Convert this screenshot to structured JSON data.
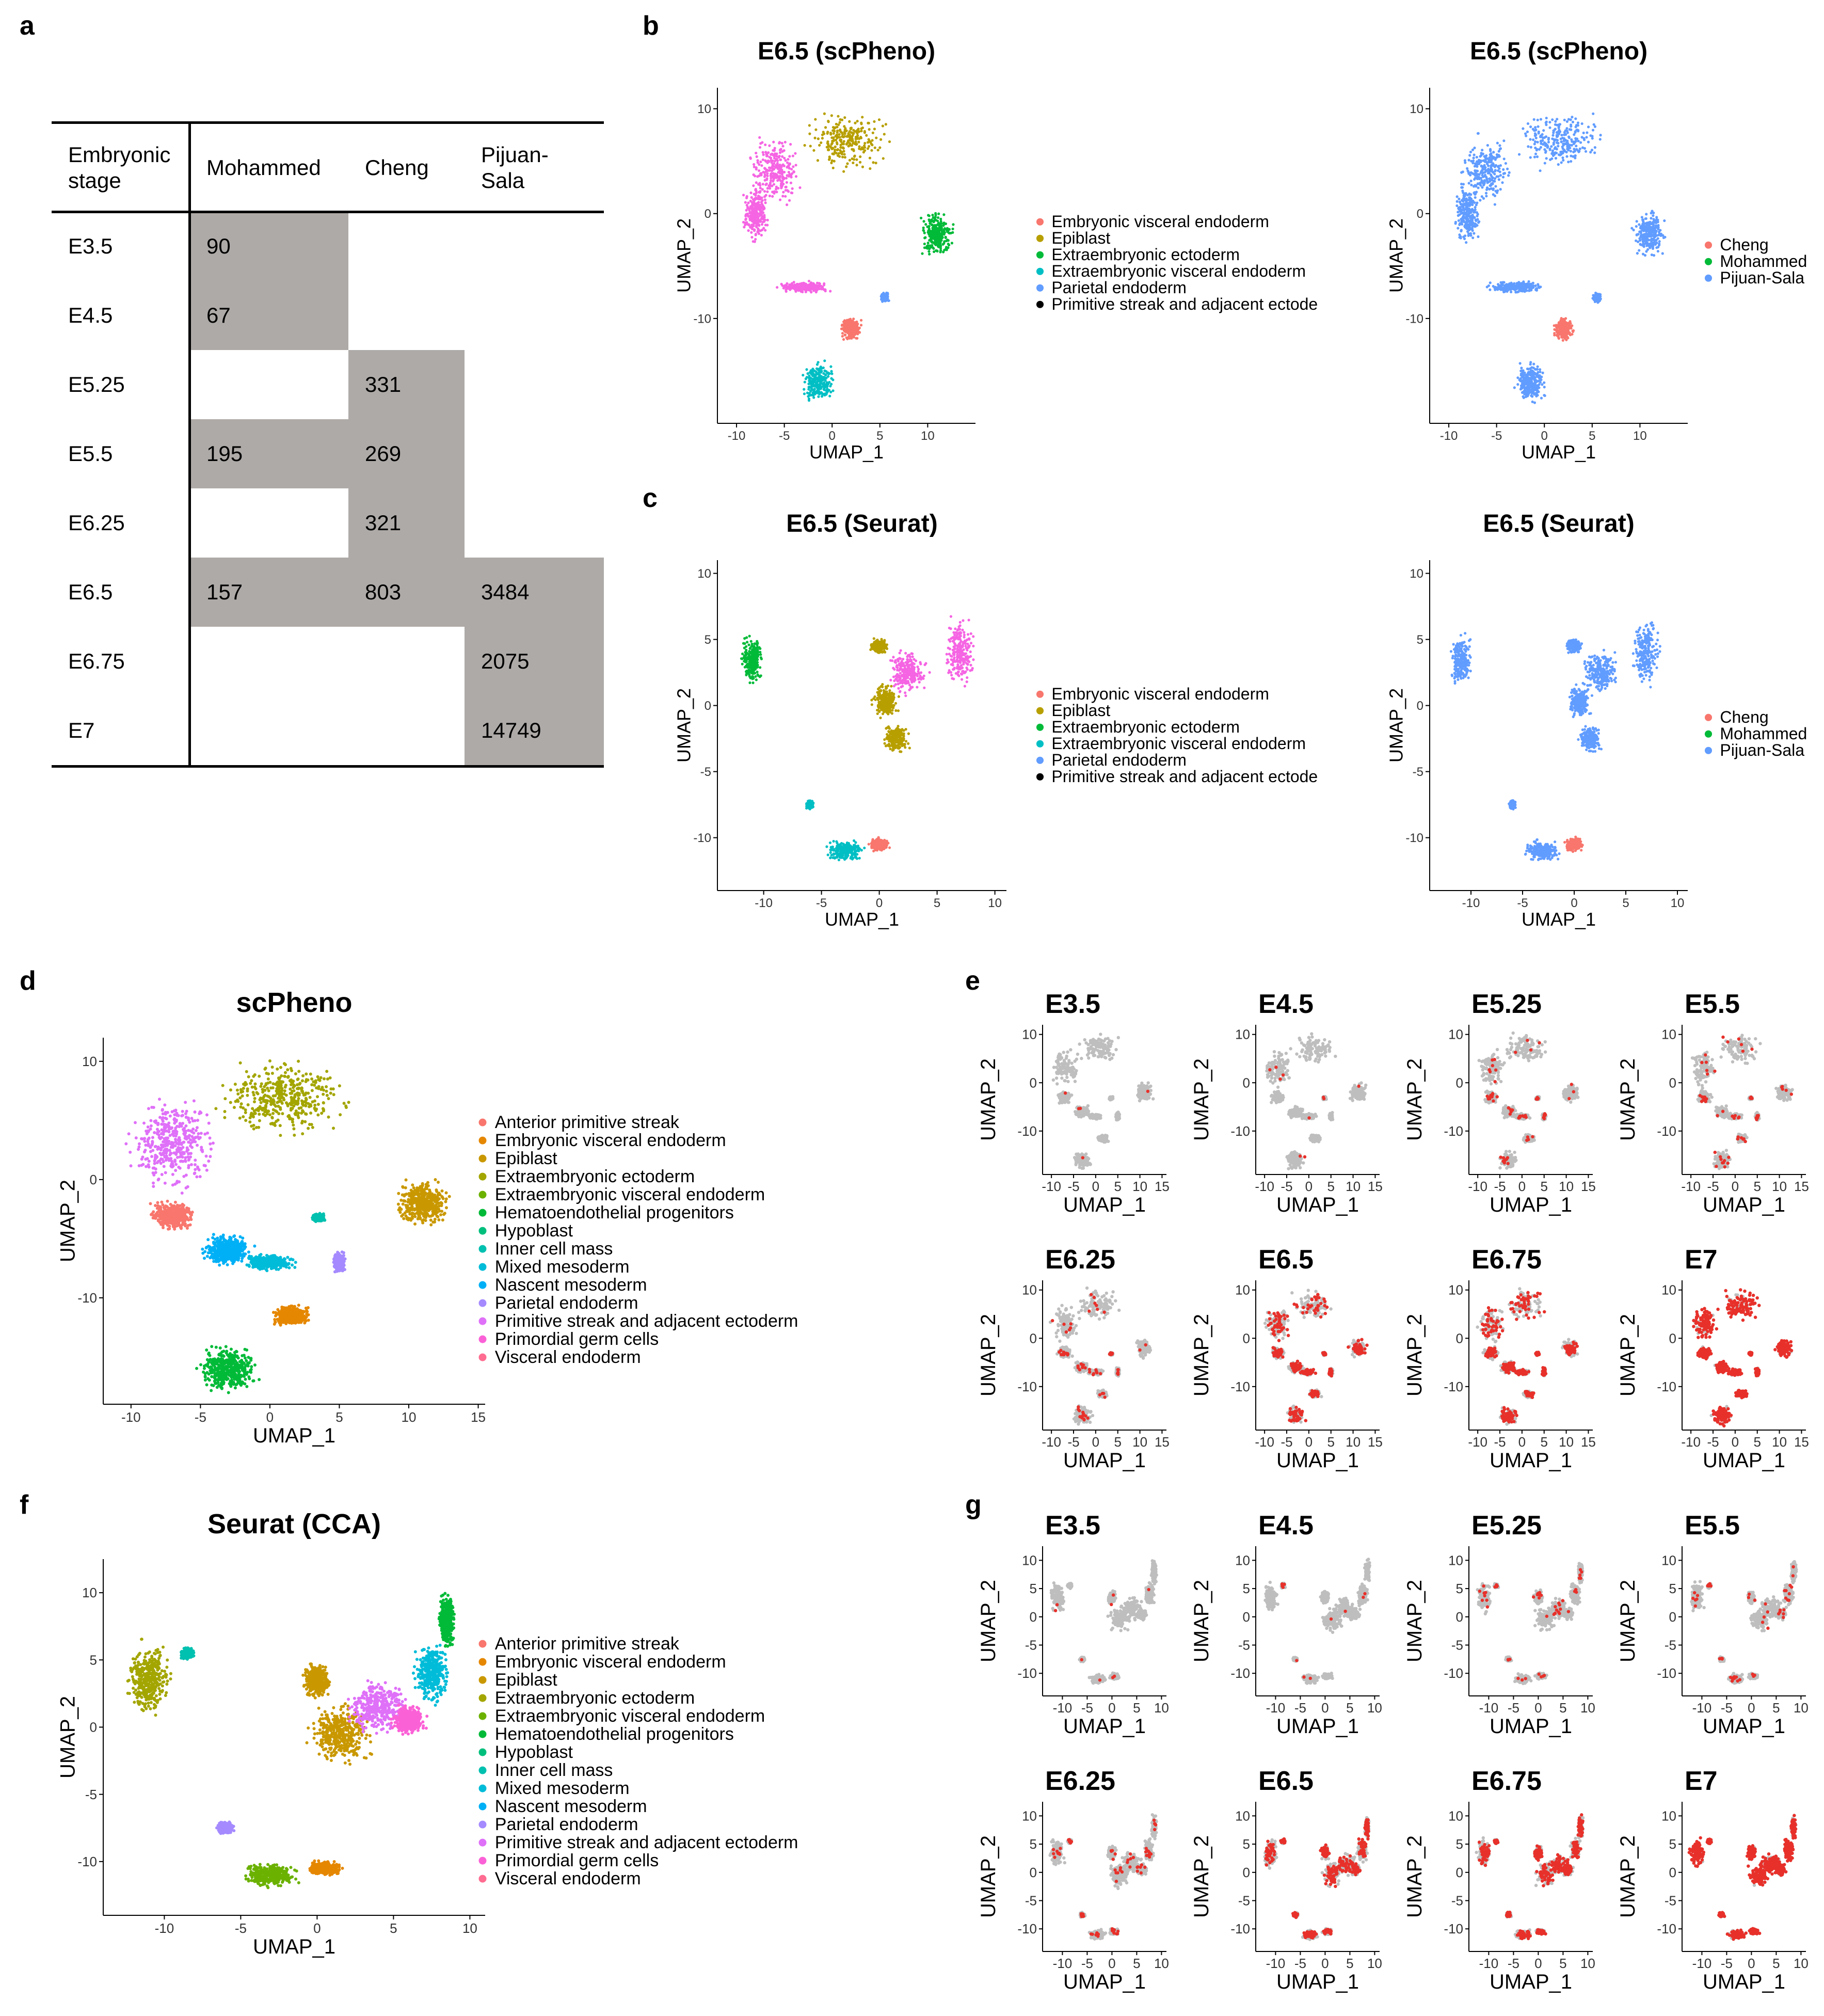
{
  "panel_labels": {
    "a": "a",
    "b": "b",
    "c": "c",
    "d": "d",
    "e": "e",
    "f": "f",
    "g": "g"
  },
  "table": {
    "headers": [
      "Embryonic stage",
      "Mohammed",
      "Cheng",
      "Pijuan-Sala"
    ],
    "header_lines": [
      [
        "Embryonic",
        "stage"
      ],
      [
        "Mohammed"
      ],
      [
        "Cheng"
      ],
      [
        "Pijuan-",
        "Sala"
      ]
    ],
    "rows": [
      {
        "stage": "E3.5",
        "mohammed": "90",
        "cheng": "",
        "pijuan": ""
      },
      {
        "stage": "E4.5",
        "mohammed": "67",
        "cheng": "",
        "pijuan": ""
      },
      {
        "stage": "E5.25",
        "mohammed": "",
        "cheng": "331",
        "pijuan": ""
      },
      {
        "stage": "E5.5",
        "mohammed": "195",
        "cheng": "269",
        "pijuan": ""
      },
      {
        "stage": "E6.25",
        "mohammed": "",
        "cheng": "321",
        "pijuan": ""
      },
      {
        "stage": "E6.5",
        "mohammed": "157",
        "cheng": "803",
        "pijuan": "3484"
      },
      {
        "stage": "E6.75",
        "mohammed": "",
        "cheng": "",
        "pijuan": "2075"
      },
      {
        "stage": "E7",
        "mohammed": "",
        "cheng": "",
        "pijuan": "14749"
      }
    ],
    "fill_color": "#aeaaa8"
  },
  "colors": {
    "Cheng": "#f8766d",
    "Mohammed": "#00ba38",
    "Pijuan-Sala": "#619cff",
    "Embryonic visceral endoderm": "#f8766d",
    "Epiblast": "#b79f00",
    "Extraembryonic ectoderm": "#00ba38",
    "Extraembryonic visceral endoderm": "#00bfc4",
    "Parietal endoderm": "#619cff",
    "Primitive streak and adjacent ectoderm": "#f564e3",
    "highlight": "#e8302a",
    "background_cells": "#bebebe"
  },
  "legends": {
    "b_types": [
      "Embryonic visceral endoderm",
      "Epiblast",
      "Extraembryonic ectoderm",
      "Extraembryonic visceral endoderm",
      "Parietal endoderm",
      "Primitive streak and adjacent ectode"
    ],
    "datasets": [
      "Cheng",
      "Mohammed",
      "Pijuan-Sala"
    ],
    "full_types": [
      "Anterior primitive streak",
      "Embryonic visceral endoderm",
      "Epiblast",
      "Extraembryonic ectoderm",
      "Extraembryonic visceral endoderm",
      "Hematoendothelial progenitors",
      "Hypoblast",
      "Inner cell mass",
      "Mixed mesoderm",
      "Nascent mesoderm",
      "Parietal endoderm",
      "Primitive streak and adjacent ectoderm",
      "Primordial germ cells",
      "Visceral endoderm"
    ],
    "full_type_colors": [
      "#f8766d",
      "#e58700",
      "#c99800",
      "#a3a500",
      "#6bb100",
      "#00ba38",
      "#00bf7d",
      "#00c0af",
      "#00bcd8",
      "#00b0f6",
      "#a58aff",
      "#df70f8",
      "#fb61d7",
      "#ff6c91"
    ],
    "dataset_mohammed_label": "Mohammed"
  },
  "chart_data": [
    {
      "id": "b1",
      "type": "scatter",
      "title": "E6.5 (scPheno)",
      "xlabel": "UMAP_1",
      "ylabel": "UMAP_2",
      "xticks": [
        "-10",
        "-5",
        "0",
        "5",
        "10"
      ],
      "yticks": [
        "10",
        "0",
        "-10"
      ],
      "xlim": [
        -12,
        15
      ],
      "ylim": [
        -20,
        12
      ],
      "color_by": "cell type"
    },
    {
      "id": "b2",
      "type": "scatter",
      "title": "E6.5 (scPheno)",
      "xlabel": "UMAP_1",
      "ylabel": "UMAP_2",
      "xticks": [
        "-10",
        "-5",
        "0",
        "5",
        "10"
      ],
      "yticks": [
        "10",
        "0",
        "-10"
      ],
      "xlim": [
        -12,
        15
      ],
      "ylim": [
        -20,
        12
      ],
      "color_by": "dataset"
    },
    {
      "id": "c1",
      "type": "scatter",
      "title": "E6.5 (Seurat)",
      "xlabel": "UMAP_1",
      "ylabel": "UMAP_2",
      "xticks": [
        "-10",
        "-5",
        "0",
        "5",
        "10"
      ],
      "yticks": [
        "10",
        "5",
        "0",
        "-5",
        "-10"
      ],
      "xlim": [
        -14,
        11
      ],
      "ylim": [
        -14,
        11
      ],
      "color_by": "cell type"
    },
    {
      "id": "c2",
      "type": "scatter",
      "title": "E6.5 (Seurat)",
      "xlabel": "UMAP_1",
      "ylabel": "UMAP_2",
      "xticks": [
        "-10",
        "-5",
        "0",
        "5",
        "10"
      ],
      "yticks": [
        "10",
        "5",
        "0",
        "-5",
        "-10"
      ],
      "xlim": [
        -14,
        11
      ],
      "ylim": [
        -14,
        11
      ],
      "color_by": "dataset"
    },
    {
      "id": "d",
      "type": "scatter",
      "title": "scPheno",
      "xlabel": "UMAP_1",
      "ylabel": "UMAP_2",
      "xticks": [
        "-10",
        "-5",
        "0",
        "5",
        "10",
        "15"
      ],
      "yticks": [
        "10",
        "0",
        "-10"
      ],
      "xlim": [
        -12,
        15.5
      ],
      "ylim": [
        -19,
        12
      ],
      "color_by": "cell type"
    },
    {
      "id": "f",
      "type": "scatter",
      "title": "Seurat (CCA)",
      "xlabel": "UMAP_1",
      "ylabel": "UMAP_2",
      "xticks": [
        "-10",
        "-5",
        "0",
        "5",
        "10"
      ],
      "yticks": [
        "10",
        "5",
        "0",
        "-5",
        "-10"
      ],
      "xlim": [
        -14,
        11
      ],
      "ylim": [
        -14,
        12.5
      ],
      "color_by": "cell type"
    },
    {
      "id": "e",
      "type": "scatter",
      "facets": [
        "E3.5",
        "E4.5",
        "E5.25",
        "E5.5",
        "E6.25",
        "E6.5",
        "E6.75",
        "E7"
      ],
      "xlabel": "UMAP_1",
      "ylabel": "UMAP_2",
      "xticks": [
        "-10",
        "-5",
        "0",
        "5",
        "10",
        "15"
      ],
      "yticks": [
        "10",
        "0",
        "-10"
      ],
      "highlight_fraction": [
        0.01,
        0.01,
        0.04,
        0.05,
        0.06,
        0.35,
        0.45,
        0.85
      ]
    },
    {
      "id": "g",
      "type": "scatter",
      "facets": [
        "E3.5",
        "E4.5",
        "E5.25",
        "E5.5",
        "E6.25",
        "E6.5",
        "E6.75",
        "E7"
      ],
      "xlabel": "UMAP_1",
      "ylabel": "UMAP_2",
      "xticks": [
        "-10",
        "-5",
        "0",
        "5",
        "10"
      ],
      "yticks": [
        "10",
        "5",
        "0",
        "-5",
        "-10"
      ],
      "highlight_fraction": [
        0.01,
        0.01,
        0.04,
        0.05,
        0.06,
        0.35,
        0.45,
        0.85
      ]
    }
  ]
}
